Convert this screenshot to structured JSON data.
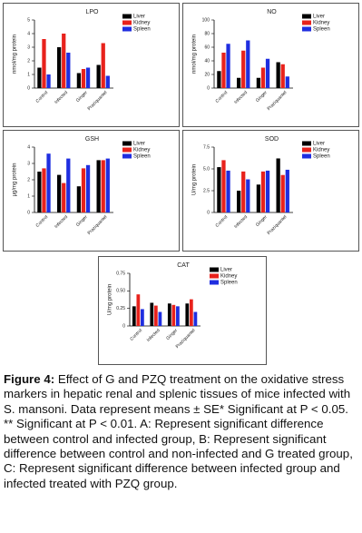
{
  "chart_data": [
    {
      "type": "bar",
      "title": "LPO",
      "y_label": "nmol/mg protein",
      "categories": [
        "Control",
        "Infected",
        "Ginger",
        "Praziquantel"
      ],
      "series": [
        {
          "name": "Liver",
          "color": "#000000",
          "values": [
            1.5,
            3.0,
            1.1,
            1.7
          ]
        },
        {
          "name": "Kidney",
          "color": "#e8221c",
          "values": [
            3.6,
            4.0,
            1.4,
            3.3
          ]
        },
        {
          "name": "Spleen",
          "color": "#1f2ee0",
          "values": [
            1.0,
            2.6,
            1.5,
            0.9
          ]
        }
      ],
      "ylim": [
        0,
        5
      ],
      "yticks": [
        0,
        1,
        2,
        3,
        4,
        5
      ]
    },
    {
      "type": "bar",
      "title": "NO",
      "y_label": "nmol/mg protein",
      "categories": [
        "Control",
        "Infected",
        "Ginger",
        "Praziquantel"
      ],
      "series": [
        {
          "name": "Liver",
          "color": "#000000",
          "values": [
            25,
            15,
            15,
            38
          ]
        },
        {
          "name": "Kidney",
          "color": "#e8221c",
          "values": [
            52,
            55,
            30,
            35
          ]
        },
        {
          "name": "Spleen",
          "color": "#1f2ee0",
          "values": [
            65,
            70,
            43,
            17
          ]
        }
      ],
      "ylim": [
        0,
        100
      ],
      "yticks": [
        0,
        20,
        40,
        60,
        80,
        100
      ]
    },
    {
      "type": "bar",
      "title": "GSH",
      "y_label": "µg/mg protein",
      "categories": [
        "Control",
        "Infected",
        "Ginger",
        "Praziquantel"
      ],
      "series": [
        {
          "name": "Liver",
          "color": "#000000",
          "values": [
            2.5,
            2.3,
            1.6,
            3.2
          ]
        },
        {
          "name": "Kidney",
          "color": "#e8221c",
          "values": [
            2.7,
            1.8,
            2.7,
            3.2
          ]
        },
        {
          "name": "Spleen",
          "color": "#1f2ee0",
          "values": [
            3.6,
            3.3,
            2.9,
            3.3
          ]
        }
      ],
      "ylim": [
        0,
        4
      ],
      "yticks": [
        0,
        1,
        2,
        3,
        4
      ]
    },
    {
      "type": "bar",
      "title": "SOD",
      "y_label": "U/mg protein",
      "categories": [
        "Control",
        "Infected",
        "Ginger",
        "Praziquantel"
      ],
      "series": [
        {
          "name": "Liver",
          "color": "#000000",
          "values": [
            5.2,
            2.5,
            3.2,
            6.2
          ]
        },
        {
          "name": "Kidney",
          "color": "#e8221c",
          "values": [
            6.0,
            4.7,
            4.7,
            4.3
          ]
        },
        {
          "name": "Spleen",
          "color": "#1f2ee0",
          "values": [
            4.8,
            3.8,
            4.8,
            4.9
          ]
        }
      ],
      "ylim": [
        0,
        7.5
      ],
      "yticks": [
        0,
        2.5,
        {
          "value": 5,
          "label": "5.0"
        },
        7.5
      ]
    },
    {
      "type": "bar",
      "title": "CAT",
      "y_label": "U/mg protein",
      "categories": [
        "Control",
        "Infected",
        "Ginger",
        "Praziquantel"
      ],
      "series": [
        {
          "name": "Liver",
          "color": "#000000",
          "values": [
            0.28,
            0.33,
            0.32,
            0.32
          ]
        },
        {
          "name": "Kidney",
          "color": "#e8221c",
          "values": [
            0.45,
            0.29,
            0.3,
            0.38
          ]
        },
        {
          "name": "Spleen",
          "color": "#1f2ee0",
          "values": [
            0.24,
            0.2,
            0.28,
            0.2
          ]
        }
      ],
      "ylim": [
        0,
        0.75
      ],
      "yticks": [
        0,
        0.25,
        {
          "value": 0.5,
          "label": "0.50"
        },
        0.75
      ]
    }
  ],
  "caption": {
    "label": "Figure 4:",
    "text": "Effect of G and PZQ treatment on the oxidative stress markers in hepatic renal and splenic tissues of mice infected with S. mansoni. Data represent means ± SE* Significant at P < 0.05. ** Significant at P < 0.01. A: Represent significant difference between control and infected group, B: Represent significant difference between control and non-infected and G treated group, C: Represent significant difference between infected group and infected treated with PZQ group."
  }
}
